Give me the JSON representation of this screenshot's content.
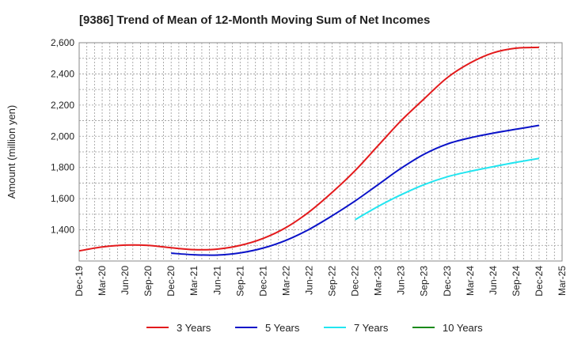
{
  "chart_data": {
    "type": "line",
    "title": "[9386]  Trend of Mean of 12-Month Moving Sum of Net Incomes",
    "xlabel": "",
    "ylabel": "Amount (million yen)",
    "x_tick_labels": [
      "Dec-19",
      "Mar-20",
      "Jun-20",
      "Sep-20",
      "Dec-20",
      "Mar-21",
      "Jun-21",
      "Sep-21",
      "Dec-21",
      "Mar-22",
      "Jun-22",
      "Sep-22",
      "Dec-22",
      "Mar-23",
      "Jun-23",
      "Sep-23",
      "Dec-23",
      "Mar-24",
      "Jun-24",
      "Sep-24",
      "Dec-24",
      "Mar-25"
    ],
    "y_ticks": [
      1400,
      1600,
      1800,
      2000,
      2200,
      2400,
      2600
    ],
    "y_tick_labels": [
      "1,400",
      "1,600",
      "1,800",
      "2,000",
      "2,200",
      "2,400",
      "2,600"
    ],
    "ylim": [
      1200,
      2600
    ],
    "grid": true,
    "legend_position": "bottom",
    "series": [
      {
        "name": "3 Years",
        "color": "#e31a1c",
        "points": [
          [
            "Dec-19",
            1265
          ],
          [
            "Mar-20",
            1290
          ],
          [
            "Jun-20",
            1302
          ],
          [
            "Sep-20",
            1300
          ],
          [
            "Dec-20",
            1285
          ],
          [
            "Mar-21",
            1273
          ],
          [
            "Jun-21",
            1276
          ],
          [
            "Sep-21",
            1300
          ],
          [
            "Dec-21",
            1345
          ],
          [
            "Mar-22",
            1415
          ],
          [
            "Jun-22",
            1515
          ],
          [
            "Sep-22",
            1640
          ],
          [
            "Dec-22",
            1780
          ],
          [
            "Mar-23",
            1940
          ],
          [
            "Jun-23",
            2100
          ],
          [
            "Sep-23",
            2240
          ],
          [
            "Dec-23",
            2375
          ],
          [
            "Mar-24",
            2470
          ],
          [
            "Jun-24",
            2535
          ],
          [
            "Sep-24",
            2565
          ],
          [
            "Dec-24",
            2570
          ]
        ]
      },
      {
        "name": "5 Years",
        "color": "#0a12c8",
        "points": [
          [
            "Dec-20",
            1250
          ],
          [
            "Mar-21",
            1240
          ],
          [
            "Jun-21",
            1238
          ],
          [
            "Sep-21",
            1252
          ],
          [
            "Dec-21",
            1283
          ],
          [
            "Mar-22",
            1333
          ],
          [
            "Jun-22",
            1403
          ],
          [
            "Sep-22",
            1490
          ],
          [
            "Dec-22",
            1585
          ],
          [
            "Mar-23",
            1690
          ],
          [
            "Jun-23",
            1795
          ],
          [
            "Sep-23",
            1885
          ],
          [
            "Dec-23",
            1950
          ],
          [
            "Mar-24",
            1990
          ],
          [
            "Jun-24",
            2020
          ],
          [
            "Sep-24",
            2045
          ],
          [
            "Dec-24",
            2070
          ]
        ]
      },
      {
        "name": "7 Years",
        "color": "#22e5f0",
        "points": [
          [
            "Dec-22",
            1465
          ],
          [
            "Mar-23",
            1550
          ],
          [
            "Jun-23",
            1625
          ],
          [
            "Sep-23",
            1690
          ],
          [
            "Dec-23",
            1740
          ],
          [
            "Mar-24",
            1775
          ],
          [
            "Jun-24",
            1805
          ],
          [
            "Sep-24",
            1833
          ],
          [
            "Dec-24",
            1858
          ]
        ]
      },
      {
        "name": "10 Years",
        "color": "#1a8a1a",
        "points": []
      }
    ]
  }
}
